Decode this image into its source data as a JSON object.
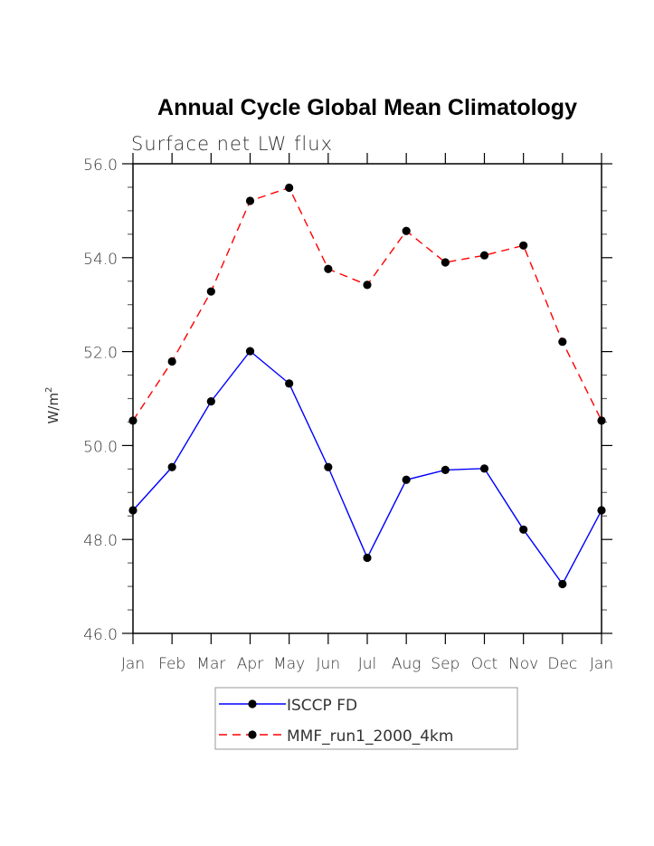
{
  "chart_data": {
    "type": "line",
    "title": "Annual Cycle Global Mean Climatology",
    "subtitle": "Surface net LW flux",
    "xlabel": "",
    "ylabel": "W/m",
    "ylabel_superscript": "2",
    "categories": [
      "Jan",
      "Feb",
      "Mar",
      "Apr",
      "May",
      "Jun",
      "Jul",
      "Aug",
      "Sep",
      "Oct",
      "Nov",
      "Dec",
      "Jan"
    ],
    "ylim": [
      46.0,
      56.0
    ],
    "yticks": [
      46.0,
      48.0,
      50.0,
      52.0,
      54.0,
      56.0
    ],
    "ytick_labels": [
      "46.0",
      "48.0",
      "50.0",
      "52.0",
      "54.0",
      "56.0"
    ],
    "yminor_step": 0.5,
    "grid": false,
    "legend_position": "bottom-center",
    "series": [
      {
        "name": "ISCCP FD",
        "color": "#0000ff",
        "line_style": "solid",
        "marker": "filled-circle",
        "marker_color": "#000000",
        "values": [
          48.62,
          49.54,
          50.94,
          52.01,
          51.32,
          49.54,
          47.61,
          49.27,
          49.48,
          49.51,
          48.21,
          47.05,
          48.62
        ]
      },
      {
        "name": "MMF_run1_2000_4km",
        "color": "#ff0000",
        "line_style": "dashed",
        "marker": "filled-circle",
        "marker_color": "#000000",
        "values": [
          50.53,
          51.79,
          53.28,
          55.21,
          55.49,
          53.76,
          53.42,
          54.57,
          53.9,
          54.05,
          54.26,
          52.21,
          50.53
        ]
      }
    ]
  }
}
